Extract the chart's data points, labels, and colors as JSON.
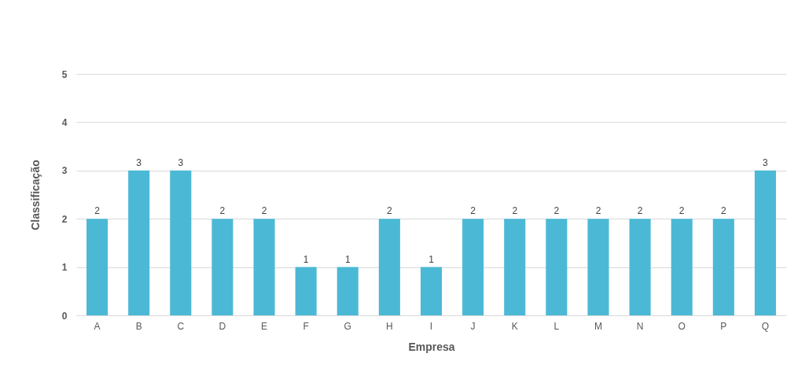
{
  "chart_data": {
    "type": "bar",
    "xlabel": "Empresa",
    "ylabel": "Classificação",
    "categories": [
      "A",
      "B",
      "C",
      "D",
      "E",
      "F",
      "G",
      "H",
      "I",
      "J",
      "K",
      "L",
      "M",
      "N",
      "O",
      "P",
      "Q"
    ],
    "values": [
      2,
      3,
      3,
      2,
      2,
      1,
      1,
      2,
      1,
      2,
      2,
      2,
      2,
      2,
      2,
      2,
      3
    ],
    "color": "#4bb9d5",
    "ylim": [
      0,
      5
    ],
    "yticks": [
      0,
      1,
      2,
      3,
      4,
      5
    ],
    "grid": "y",
    "data_labels": true
  }
}
